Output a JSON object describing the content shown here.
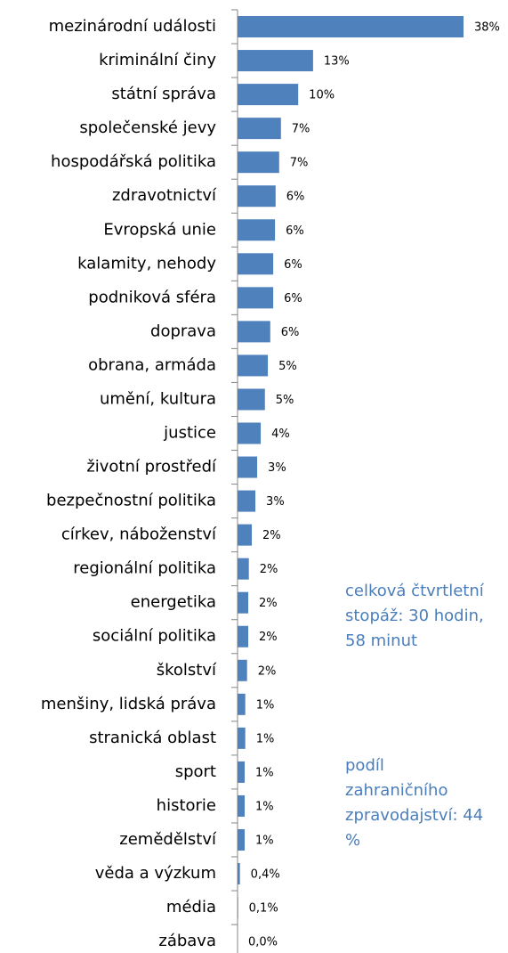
{
  "chart_data": {
    "type": "bar",
    "orientation": "horizontal",
    "color": "#4f81bd",
    "categories": [
      "mezinárodní události",
      "kriminální činy",
      "státní správa",
      "společenské jevy",
      "hospodářská politika",
      "zdravotnictví",
      "Evropská unie",
      "kalamity, nehody",
      "podniková sféra",
      "doprava",
      "obrana, armáda",
      "umění, kultura",
      "justice",
      "životní prostředí",
      "bezpečnostní politika",
      "církev, náboženství",
      "regionální politika",
      "energetika",
      "sociální politika",
      "školství",
      "menšiny, lidská práva",
      "stranická oblast",
      "sport",
      "historie",
      "zemědělství",
      "věda a výzkum",
      "média",
      "zábava"
    ],
    "values": [
      38,
      12.7,
      10.2,
      7.3,
      7.0,
      6.4,
      6.3,
      6.0,
      6.0,
      5.5,
      5.1,
      4.6,
      3.9,
      3.3,
      3.0,
      2.4,
      1.9,
      1.8,
      1.8,
      1.6,
      1.3,
      1.3,
      1.2,
      1.2,
      1.2,
      0.4,
      0.1,
      0.0
    ],
    "value_labels": [
      "38%",
      "13%",
      "10%",
      "7%",
      "7%",
      "6%",
      "6%",
      "6%",
      "6%",
      "6%",
      "5%",
      "5%",
      "4%",
      "3%",
      "3%",
      "2%",
      "2%",
      "2%",
      "2%",
      "2%",
      "1%",
      "1%",
      "1%",
      "1%",
      "1%",
      "0,4%",
      "0,1%",
      "0,0%"
    ],
    "xlim": [
      0,
      38
    ],
    "annotations": [
      "celková čtvrtletní stopáž: 30 hodin, 58 minut",
      "podíl zahraničního zpravodajství: 44 %"
    ]
  }
}
